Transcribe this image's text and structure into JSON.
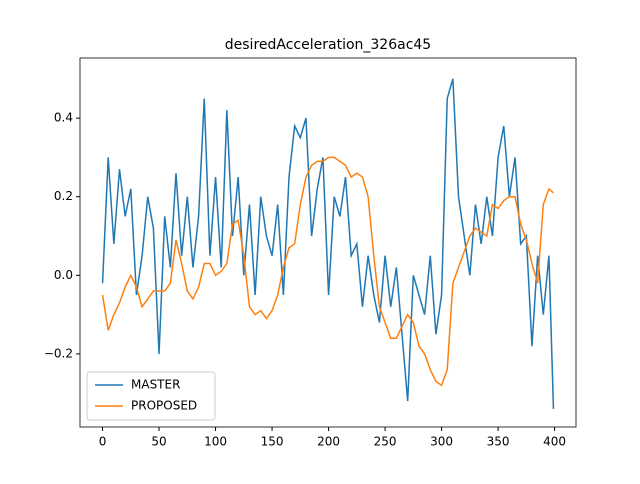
{
  "chart_data": {
    "type": "line",
    "title": "desiredAcceleration_326ac45",
    "x": [
      0,
      5,
      10,
      15,
      20,
      25,
      30,
      35,
      40,
      45,
      50,
      55,
      60,
      65,
      70,
      75,
      80,
      85,
      90,
      95,
      100,
      105,
      110,
      115,
      120,
      125,
      130,
      135,
      140,
      145,
      150,
      155,
      160,
      165,
      170,
      175,
      180,
      185,
      190,
      195,
      200,
      205,
      210,
      215,
      220,
      225,
      230,
      235,
      240,
      245,
      250,
      255,
      260,
      265,
      270,
      275,
      280,
      285,
      290,
      295,
      300,
      305,
      310,
      315,
      320,
      325,
      330,
      335,
      340,
      345,
      350,
      355,
      360,
      365,
      370,
      375,
      380,
      385,
      390,
      395,
      399
    ],
    "series": [
      {
        "name": "MASTER",
        "color": "#1f77b4",
        "values": [
          -0.02,
          0.3,
          0.08,
          0.27,
          0.15,
          0.22,
          -0.05,
          0.05,
          0.2,
          0.12,
          -0.2,
          0.15,
          0.02,
          0.26,
          0.05,
          0.2,
          0.02,
          0.15,
          0.45,
          0.05,
          0.25,
          0.02,
          0.42,
          0.1,
          0.25,
          0.0,
          0.18,
          -0.05,
          0.2,
          0.1,
          0.05,
          0.18,
          -0.05,
          0.25,
          0.38,
          0.35,
          0.4,
          0.1,
          0.22,
          0.3,
          -0.05,
          0.2,
          0.15,
          0.25,
          0.05,
          0.08,
          -0.08,
          0.05,
          -0.05,
          -0.12,
          0.05,
          -0.08,
          0.02,
          -0.15,
          -0.32,
          0.0,
          -0.05,
          -0.1,
          0.05,
          -0.15,
          -0.05,
          0.45,
          0.5,
          0.2,
          0.1,
          0.0,
          0.18,
          0.08,
          0.2,
          0.1,
          0.3,
          0.38,
          0.2,
          0.3,
          0.08,
          0.1,
          -0.18,
          0.05,
          -0.1,
          0.05,
          -0.34
        ]
      },
      {
        "name": "PROPOSED",
        "color": "#ff7f0e",
        "values": [
          -0.05,
          -0.14,
          -0.1,
          -0.07,
          -0.03,
          0.0,
          -0.03,
          -0.08,
          -0.06,
          -0.04,
          -0.04,
          -0.04,
          -0.02,
          0.09,
          0.03,
          -0.04,
          -0.06,
          -0.03,
          0.03,
          0.03,
          0.0,
          0.01,
          0.03,
          0.13,
          0.14,
          0.05,
          -0.08,
          -0.1,
          -0.09,
          -0.11,
          -0.09,
          -0.05,
          0.02,
          0.07,
          0.08,
          0.18,
          0.25,
          0.28,
          0.29,
          0.29,
          0.3,
          0.3,
          0.29,
          0.28,
          0.25,
          0.26,
          0.25,
          0.2,
          0.05,
          -0.08,
          -0.12,
          -0.16,
          -0.16,
          -0.13,
          -0.1,
          -0.12,
          -0.18,
          -0.2,
          -0.24,
          -0.27,
          -0.28,
          -0.24,
          -0.02,
          0.02,
          0.06,
          0.1,
          0.12,
          0.11,
          0.1,
          0.18,
          0.17,
          0.19,
          0.2,
          0.2,
          0.13,
          0.09,
          0.03,
          -0.02,
          0.18,
          0.22,
          0.21
        ]
      }
    ],
    "xlim": [
      -19.95,
      418.95
    ],
    "xticks": [
      0,
      50,
      100,
      150,
      200,
      250,
      300,
      350,
      400
    ],
    "ylim": [
      -0.386,
      0.553
    ],
    "yticks": [
      {
        "value": -0.2,
        "label": "−0.2"
      },
      {
        "value": 0,
        "label": "0.0"
      },
      {
        "value": 0.2,
        "label": "0.2"
      },
      {
        "value": 0.4,
        "label": "0.4"
      }
    ],
    "legend": "lower left"
  }
}
